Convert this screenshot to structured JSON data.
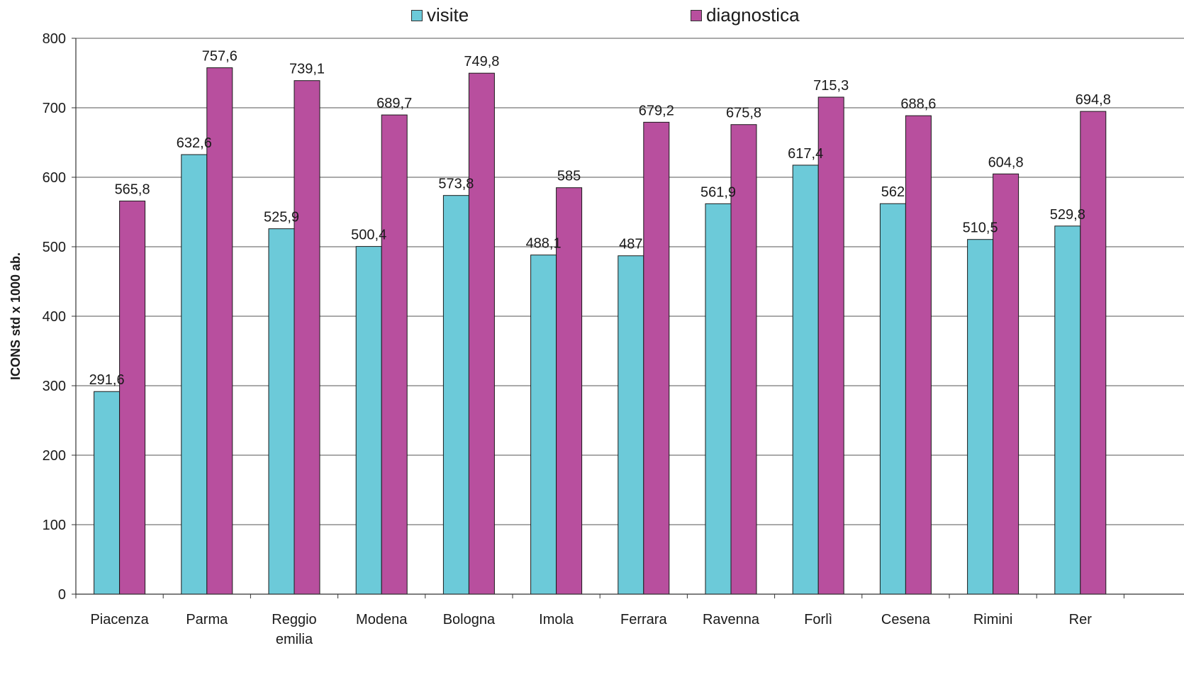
{
  "chart_data": {
    "type": "bar",
    "categories": [
      "Piacenza",
      "Parma",
      "Reggio emilia",
      "Modena",
      "Bologna",
      "Imola",
      "Ferrara",
      "Ravenna",
      "Forlì",
      "Cesena",
      "Rimini",
      "Rer"
    ],
    "category_label_lines": [
      [
        "Piacenza"
      ],
      [
        "Parma"
      ],
      [
        "Reggio",
        "emilia"
      ],
      [
        "Modena"
      ],
      [
        "Bologna"
      ],
      [
        "Imola"
      ],
      [
        "Ferrara"
      ],
      [
        "Ravenna"
      ],
      [
        "Forlì"
      ],
      [
        "Cesena"
      ],
      [
        "Rimini"
      ],
      [
        "Rer"
      ]
    ],
    "series": [
      {
        "name": "visite",
        "color": "#6ccad9",
        "values": [
          291.6,
          632.6,
          525.9,
          500.4,
          573.8,
          488.1,
          487,
          561.9,
          617.4,
          562,
          510.5,
          529.8
        ],
        "labels": [
          "291,6",
          "632,6",
          "525,9",
          "500,4",
          "573,8",
          "488,1",
          "487",
          "561,9",
          "617,4",
          "562",
          "510,5",
          "529,8"
        ]
      },
      {
        "name": "diagnostica",
        "color": "#b84f9e",
        "values": [
          565.8,
          757.6,
          739.1,
          689.7,
          749.8,
          585,
          679.2,
          675.8,
          715.3,
          688.6,
          604.8,
          694.8
        ],
        "labels": [
          "565,8",
          "757,6",
          "739,1",
          "689,7",
          "749,8",
          "585",
          "679,2",
          "675,8",
          "715,3",
          "688,6",
          "604,8",
          "694,8"
        ]
      }
    ],
    "title": "",
    "xlabel": "",
    "ylabel": "ICONS std x 1000 ab.",
    "ylim": [
      0,
      800
    ],
    "yticks": [
      0,
      100,
      200,
      300,
      400,
      500,
      600,
      700,
      800
    ],
    "grid": true,
    "legend_position": "top"
  }
}
